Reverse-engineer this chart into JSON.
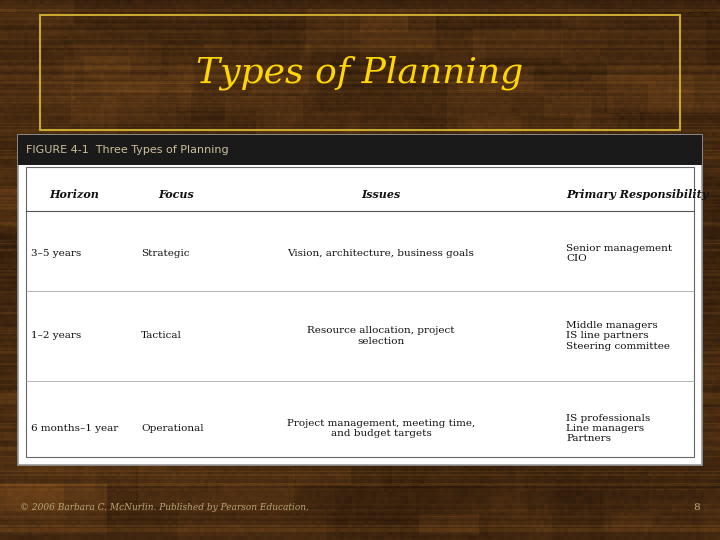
{
  "title": "Types of Planning",
  "title_color": "#FFD700",
  "title_fontsize": 26,
  "title_font": "serif",
  "bg_color_dark": "#3a2010",
  "bg_color_mid": "#6b4820",
  "bg_color_light": "#8a6030",
  "table_bg": "#ffffff",
  "table_border": "#aaaaaa",
  "table_header_bg": "#1a1a1a",
  "table_header_text": "#ccbf9a",
  "figure_label": "FIGURE 4-1  Three Types of Planning",
  "title_box_color": "#c8a830",
  "footer_text": "© 2006 Barbara C. McNurlin. Published by Pearson Education.",
  "footer_color": "#b8a878",
  "page_number": "8",
  "columns": [
    "Horizon",
    "Focus",
    "Issues",
    "Primary Responsibility"
  ],
  "col_header_fontsize": 8.0,
  "row_fontsize": 7.5,
  "header_label_fontsize": 8.0,
  "rows": [
    {
      "horizon": "3–5 years",
      "focus": "Strategic",
      "issues": "Vision, architecture, business goals",
      "responsibility": "Senior management\nCIO"
    },
    {
      "horizon": "1–2 years",
      "focus": "Tactical",
      "issues": "Resource allocation, project\nselection",
      "responsibility": "Middle managers\nIS line partners\nSteering committee"
    },
    {
      "horizon": "6 months–1 year",
      "focus": "Operational",
      "issues": "Project management, meeting time,\nand budget targets",
      "responsibility": "IS professionals\nLine managers\nPartners"
    }
  ]
}
